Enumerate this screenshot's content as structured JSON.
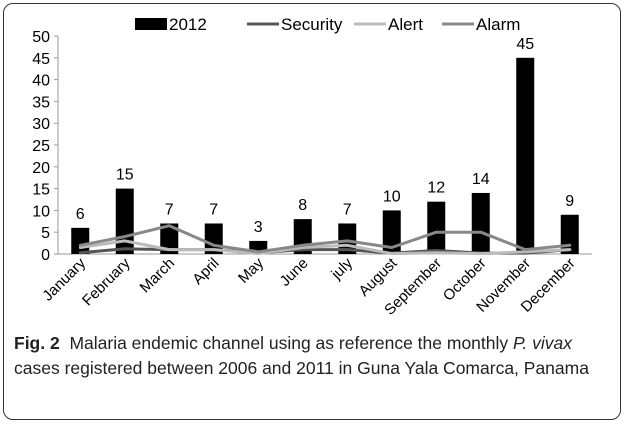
{
  "caption": {
    "label": "Fig. 2",
    "text_before": "Malaria endemic channel using as reference the monthly ",
    "species": "P. vivax",
    "text_after": " cases registered between 2006 and 2011 in Guna Yala Comarca, Panama"
  },
  "chart_data": {
    "type": "bar",
    "title": "",
    "xlabel": "",
    "ylabel": "",
    "ylim": [
      0,
      50
    ],
    "yticks": [
      0,
      5,
      10,
      15,
      20,
      25,
      30,
      35,
      40,
      45,
      50
    ],
    "grid": false,
    "legend_position": "top",
    "categories": [
      "January",
      "February",
      "March",
      "April",
      "May",
      "June",
      "july",
      "August",
      "September",
      "October",
      "November",
      "December"
    ],
    "series": [
      {
        "name": "2012",
        "kind": "bar",
        "color": "#000000",
        "values": [
          6,
          15,
          7,
          7,
          3,
          8,
          7,
          10,
          12,
          14,
          45,
          9
        ],
        "labels": [
          "6",
          "15",
          "7",
          "7",
          "3",
          "8",
          "7",
          "10",
          "12",
          "14",
          "45",
          "9"
        ]
      },
      {
        "name": "Security",
        "kind": "line",
        "color": "#555555",
        "values": [
          0.3,
          1.2,
          1,
          1,
          0.3,
          1,
          1,
          0.2,
          0.8,
          0.2,
          0.2,
          1
        ]
      },
      {
        "name": "Alert",
        "kind": "line",
        "color": "#bbbbbb",
        "values": [
          1.5,
          3,
          1,
          1,
          0.1,
          1.5,
          2,
          0.1,
          0.3,
          0.1,
          0.5,
          1
        ]
      },
      {
        "name": "Alarm",
        "kind": "line",
        "color": "#888888",
        "values": [
          2,
          4,
          6.5,
          2,
          0.5,
          2,
          3,
          1.5,
          5,
          5,
          1,
          2
        ]
      }
    ]
  }
}
